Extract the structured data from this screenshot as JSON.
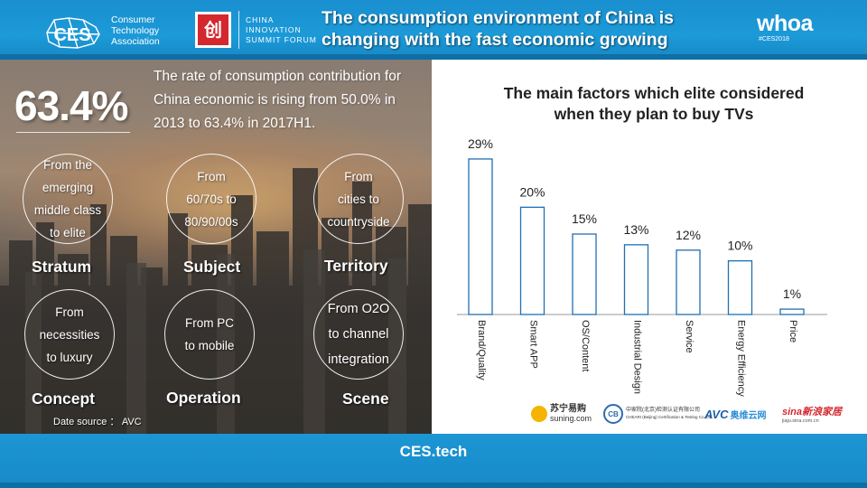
{
  "header": {
    "ces_logo": "CES",
    "cta_lines": [
      "Consumer",
      "Technology",
      "Association"
    ],
    "forum_badge_glyph": "创",
    "forum_lines": [
      "CHINA",
      "INNOVATION",
      "SUMMIT FORUM"
    ],
    "title_line1": "The consumption environment of China is",
    "title_line2": "changing with the fast economic growing",
    "brand": "whoa",
    "brand_tag": "#CES2018"
  },
  "left": {
    "big_stat": "63.4%",
    "description": "The rate of consumption contribution for China economic is rising from 50.0% in 2013 to 63.4% in 2017H1.",
    "cards": [
      {
        "lines": [
          "From the",
          "emerging",
          "middle  class",
          "to elite"
        ],
        "label": "Stratum"
      },
      {
        "lines": [
          "From",
          "60/70s  to",
          "80/90/00s"
        ],
        "label": "Subject"
      },
      {
        "lines": [
          "From",
          "cities to",
          "countryside"
        ],
        "label": "Territory"
      },
      {
        "lines": [
          "From",
          "necessities",
          "to luxury"
        ],
        "label": "Concept"
      },
      {
        "lines": [
          "From PC",
          "to mobile"
        ],
        "label": "Operation"
      },
      {
        "lines": [
          "From O2O",
          "to channel",
          "integration"
        ],
        "label": "Scene"
      }
    ],
    "source": "Date source ： AVC"
  },
  "chart_data": {
    "type": "bar",
    "title": "The main factors which elite considered when they plan to buy TVs",
    "title_line1": "The main factors which elite considered",
    "title_line2": "when they plan to buy TVs",
    "categories": [
      "Brand/Quality",
      "Smart APP",
      "OS/Content",
      "Industrial Design",
      "Service",
      "Energy Efficiency",
      "Price"
    ],
    "values": [
      29,
      20,
      15,
      13,
      12,
      10,
      1
    ],
    "value_labels": [
      "29%",
      "20%",
      "15%",
      "13%",
      "12%",
      "10%",
      "1%"
    ],
    "ylim": [
      0,
      30
    ],
    "bar_color": "#ffffff",
    "bar_stroke": "#1f6fb5",
    "label_rotation": "vertical"
  },
  "logos": {
    "suning_cn": "苏宁易购",
    "suning_en": "suning.com",
    "cb_mark": "CB",
    "cb_cn": "中家院(北京)检测认证有限公司",
    "cb_en": "CHEARI (Beijing) Certification & Testing Co.,Ltd.",
    "avc": "AVC",
    "hd": "奥维云网",
    "sina": "sina新浪家居",
    "sina_sub": "jiaju.sina.com.cn"
  },
  "footer": {
    "text": "CES.tech"
  },
  "colors": {
    "header_blue": "#1c9ad8",
    "dark_blue": "#0f6ea6",
    "bar_outline": "#1f6fb5"
  }
}
